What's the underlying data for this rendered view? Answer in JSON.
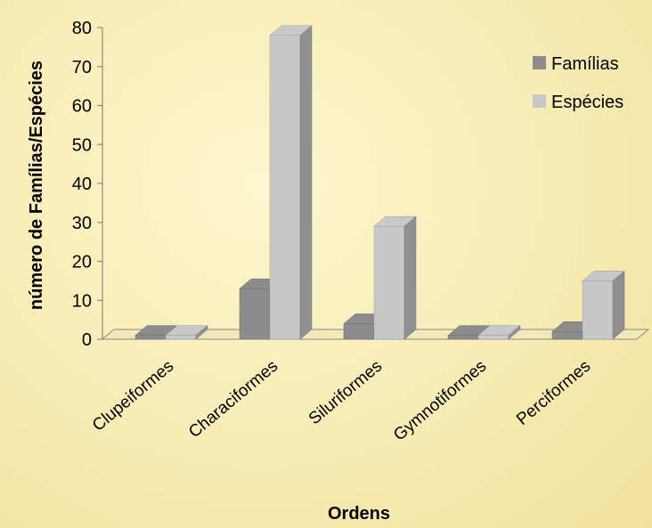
{
  "chart_data": {
    "type": "bar",
    "title": "",
    "xlabel": "Ordens",
    "ylabel": "número de Famílias/Espécies",
    "categories": [
      "Clupeiformes",
      "Characiformes",
      "Siluriformes",
      "Gymnotiformes",
      "Perciformes"
    ],
    "series": [
      {
        "name": "Famílias",
        "values": [
          1,
          13,
          4,
          1,
          2
        ],
        "color": "#8c8c8c"
      },
      {
        "name": "Espécies",
        "values": [
          1,
          78,
          29,
          1,
          15
        ],
        "color": "#c8c8c8"
      }
    ],
    "ylim": [
      0,
      80
    ],
    "yticks": [
      0,
      10,
      20,
      30,
      40,
      50,
      60,
      70,
      80
    ],
    "legend_position": "right",
    "grid": false,
    "style": "3d-clustered-column"
  }
}
